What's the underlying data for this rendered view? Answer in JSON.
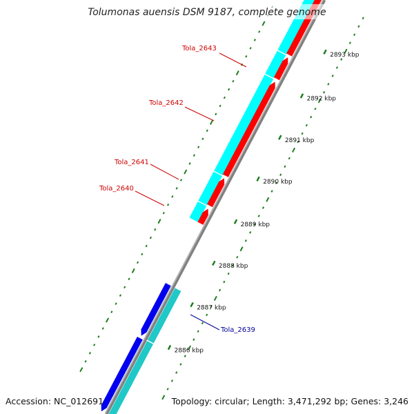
{
  "title": "Tolumonas auensis DSM 9187, complete genome",
  "accession": "Accession: NC_012691",
  "topology": "Topology: circular; Length: 3,471,292 bp; Genes: 3,246",
  "colors": {
    "backbone": "#808080",
    "tick": "#1e7d1e",
    "forward_cds": "#ff0000",
    "forward_gene": "#00ffff",
    "reverse_cds": "#0000ee",
    "reverse_gene": "#20c8c8",
    "forward_label": "#cc0000",
    "reverse_label": "#000099"
  },
  "ticks": [
    {
      "label": "2893 kbp"
    },
    {
      "label": "2892 kbp"
    },
    {
      "label": "2891 kbp"
    },
    {
      "label": "2890 kbp"
    },
    {
      "label": "2889 kbp"
    },
    {
      "label": "2888 kbp"
    },
    {
      "label": "2887 kbp"
    },
    {
      "label": "2886 kbp"
    }
  ],
  "genes": [
    {
      "name": "Tola_2643",
      "strand": "forward"
    },
    {
      "name": "Tola_2642",
      "strand": "forward"
    },
    {
      "name": "Tola_2641",
      "strand": "forward"
    },
    {
      "name": "Tola_2640",
      "strand": "forward"
    },
    {
      "name": "Tola_2639",
      "strand": "reverse"
    }
  ]
}
